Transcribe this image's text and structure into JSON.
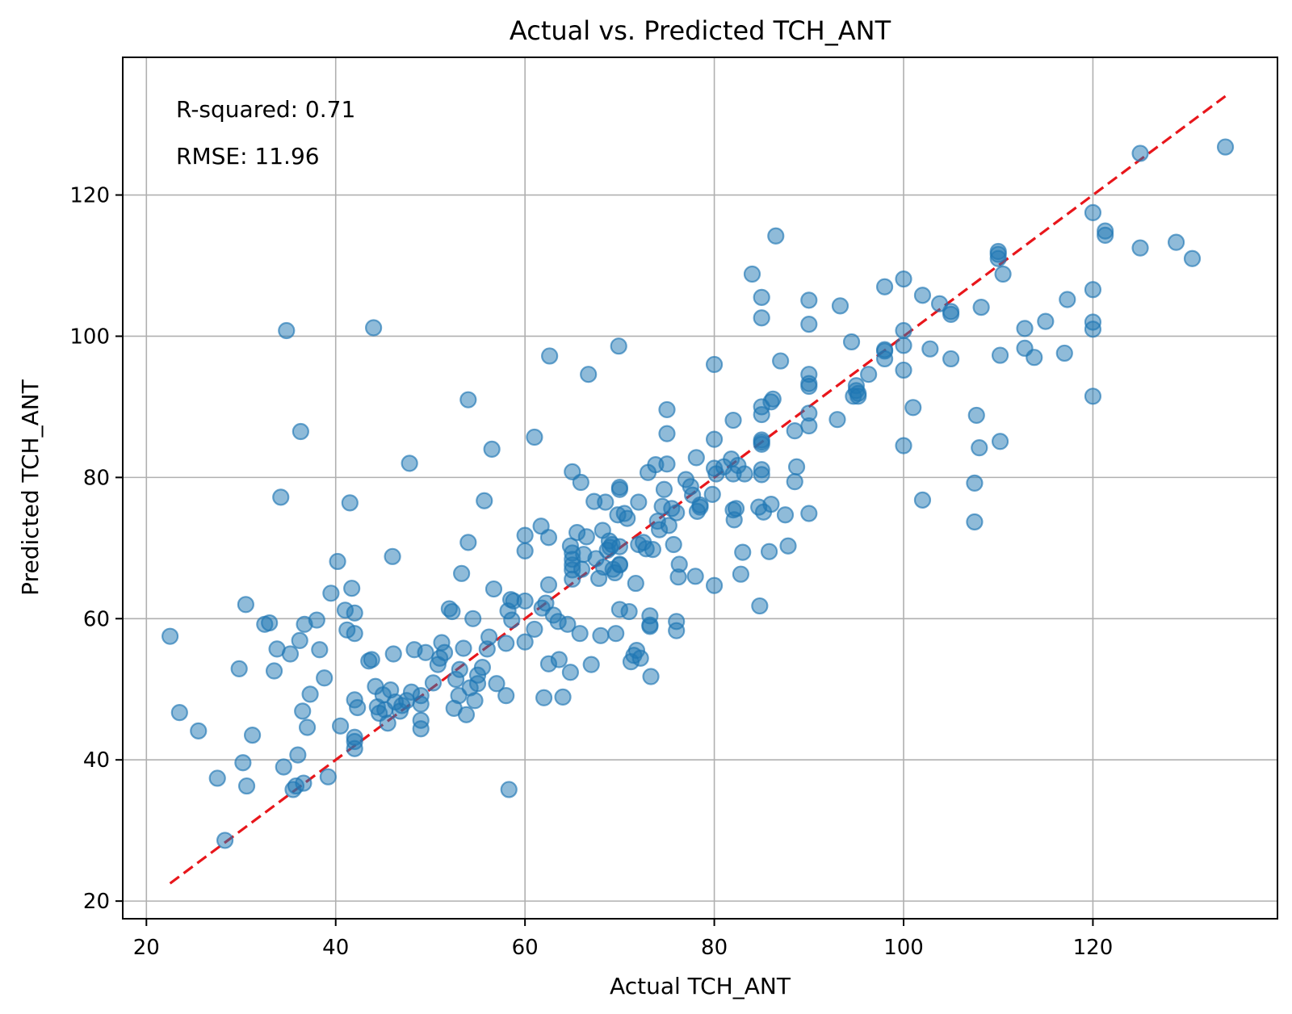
{
  "chart_data": {
    "type": "scatter",
    "title": "Actual vs. Predicted TCH_ANT",
    "xlabel": "Actual TCH_ANT",
    "ylabel": "Predicted TCH_ANT",
    "xlim": [
      17.5,
      139.5
    ],
    "ylim": [
      17.5,
      139.5
    ],
    "xticks": [
      20,
      40,
      60,
      80,
      100,
      120
    ],
    "yticks": [
      20,
      40,
      60,
      80,
      100,
      120
    ],
    "xtick_labels": [
      "20",
      "40",
      "60",
      "80",
      "100",
      "120"
    ],
    "ytick_labels": [
      "20",
      "40",
      "60",
      "80",
      "100",
      "120"
    ],
    "grid": true,
    "annotations": {
      "r_squared": "R-squared: 0.71",
      "rmse": "RMSE: 11.96"
    },
    "reference_line": {
      "x": [
        22.5,
        134
      ],
      "y": [
        22.5,
        134
      ],
      "style": "dashed",
      "color": "#e8161b"
    },
    "marker_color": "#1f77b4",
    "series": [
      {
        "points": [
          [
            22.5,
            57.5
          ],
          [
            23.5,
            46.7
          ],
          [
            25.5,
            44.1
          ],
          [
            27.5,
            37.4
          ],
          [
            28.3,
            28.6
          ],
          [
            29.8,
            52.9
          ],
          [
            30.2,
            39.6
          ],
          [
            30.5,
            62.0
          ],
          [
            30.6,
            36.3
          ],
          [
            31.2,
            43.5
          ],
          [
            32.5,
            59.2
          ],
          [
            33.0,
            59.4
          ],
          [
            33.5,
            52.6
          ],
          [
            33.8,
            55.7
          ],
          [
            34.2,
            77.2
          ],
          [
            34.5,
            39.0
          ],
          [
            34.8,
            100.8
          ],
          [
            35.2,
            55.0
          ],
          [
            35.5,
            35.8
          ],
          [
            35.8,
            36.3
          ],
          [
            36.0,
            40.7
          ],
          [
            36.2,
            56.9
          ],
          [
            36.3,
            86.5
          ],
          [
            36.5,
            46.9
          ],
          [
            36.6,
            36.7
          ],
          [
            36.7,
            59.2
          ],
          [
            37.0,
            44.6
          ],
          [
            37.3,
            49.3
          ],
          [
            38.0,
            59.8
          ],
          [
            38.3,
            55.6
          ],
          [
            38.8,
            51.6
          ],
          [
            39.2,
            37.6
          ],
          [
            39.5,
            63.6
          ],
          [
            40.2,
            68.1
          ],
          [
            40.5,
            44.8
          ],
          [
            41.0,
            61.2
          ],
          [
            41.2,
            58.4
          ],
          [
            41.5,
            76.4
          ],
          [
            41.7,
            64.3
          ],
          [
            42.0,
            57.9
          ],
          [
            42.0,
            60.8
          ],
          [
            42.0,
            42.6
          ],
          [
            42.0,
            41.6
          ],
          [
            42.0,
            43.2
          ],
          [
            42.0,
            48.5
          ],
          [
            42.3,
            47.4
          ],
          [
            43.5,
            54.0
          ],
          [
            43.8,
            54.2
          ],
          [
            44.0,
            101.2
          ],
          [
            44.2,
            50.4
          ],
          [
            44.4,
            47.5
          ],
          [
            44.6,
            46.6
          ],
          [
            45.0,
            49.2
          ],
          [
            45.2,
            47.1
          ],
          [
            45.5,
            45.2
          ],
          [
            45.8,
            49.9
          ],
          [
            46.0,
            68.8
          ],
          [
            46.1,
            55.0
          ],
          [
            46.3,
            48.2
          ],
          [
            46.8,
            46.9
          ],
          [
            47.0,
            47.7
          ],
          [
            47.5,
            48.4
          ],
          [
            47.8,
            82.0
          ],
          [
            48.0,
            49.6
          ],
          [
            48.3,
            55.6
          ],
          [
            49.0,
            47.9
          ],
          [
            49.0,
            45.6
          ],
          [
            49.0,
            44.4
          ],
          [
            49.0,
            49.1
          ],
          [
            49.5,
            55.2
          ],
          [
            50.3,
            50.9
          ],
          [
            50.8,
            53.5
          ],
          [
            51.0,
            54.4
          ],
          [
            51.2,
            56.6
          ],
          [
            51.5,
            55.2
          ],
          [
            52.0,
            61.4
          ],
          [
            52.3,
            61.0
          ],
          [
            52.5,
            47.3
          ],
          [
            52.7,
            51.4
          ],
          [
            53.0,
            49.1
          ],
          [
            53.1,
            52.8
          ],
          [
            53.3,
            66.4
          ],
          [
            53.5,
            55.8
          ],
          [
            53.8,
            46.4
          ],
          [
            54.0,
            70.8
          ],
          [
            54.0,
            91.0
          ],
          [
            54.2,
            50.2
          ],
          [
            54.5,
            60.0
          ],
          [
            54.7,
            48.4
          ],
          [
            55.0,
            50.8
          ],
          [
            55.0,
            52.0
          ],
          [
            55.5,
            53.1
          ],
          [
            55.7,
            76.7
          ],
          [
            56.0,
            55.7
          ],
          [
            56.2,
            57.4
          ],
          [
            56.5,
            84.0
          ],
          [
            56.7,
            64.2
          ],
          [
            57.0,
            50.8
          ],
          [
            58.0,
            49.1
          ],
          [
            58.0,
            56.5
          ],
          [
            58.2,
            61.1
          ],
          [
            58.3,
            35.8
          ],
          [
            58.5,
            62.7
          ],
          [
            58.6,
            59.8
          ],
          [
            58.8,
            62.5
          ],
          [
            60.0,
            71.8
          ],
          [
            60.0,
            69.6
          ],
          [
            60.0,
            62.5
          ],
          [
            60.0,
            56.7
          ],
          [
            61.0,
            85.7
          ],
          [
            61.0,
            58.5
          ],
          [
            61.7,
            73.1
          ],
          [
            61.8,
            61.5
          ],
          [
            62.0,
            48.8
          ],
          [
            62.2,
            62.2
          ],
          [
            62.5,
            53.6
          ],
          [
            62.5,
            64.8
          ],
          [
            62.5,
            71.5
          ],
          [
            62.6,
            97.2
          ],
          [
            63.0,
            60.5
          ],
          [
            63.5,
            59.6
          ],
          [
            63.6,
            54.2
          ],
          [
            64.0,
            48.9
          ],
          [
            64.5,
            59.2
          ],
          [
            64.8,
            70.3
          ],
          [
            64.8,
            52.4
          ],
          [
            65.0,
            68.4
          ],
          [
            65.0,
            67.6
          ],
          [
            65.0,
            80.8
          ],
          [
            65.0,
            66.9
          ],
          [
            65.0,
            65.6
          ],
          [
            65.0,
            69.3
          ],
          [
            65.5,
            72.2
          ],
          [
            65.8,
            57.9
          ],
          [
            65.9,
            79.3
          ],
          [
            66.0,
            67.0
          ],
          [
            66.2,
            69.1
          ],
          [
            66.5,
            71.6
          ],
          [
            66.7,
            94.6
          ],
          [
            67.0,
            53.5
          ],
          [
            67.3,
            76.6
          ],
          [
            67.5,
            68.5
          ],
          [
            67.8,
            65.7
          ],
          [
            68.0,
            57.6
          ],
          [
            68.2,
            72.5
          ],
          [
            68.3,
            67.3
          ],
          [
            68.5,
            76.5
          ],
          [
            68.7,
            69.7
          ],
          [
            68.9,
            71.0
          ],
          [
            69.0,
            70.1
          ],
          [
            69.2,
            70.5
          ],
          [
            69.3,
            67.0
          ],
          [
            69.5,
            66.5
          ],
          [
            69.6,
            57.9
          ],
          [
            69.8,
            74.7
          ],
          [
            69.9,
            98.6
          ],
          [
            70.0,
            78.3
          ],
          [
            70.0,
            67.7
          ],
          [
            70.0,
            61.3
          ],
          [
            70.0,
            70.2
          ],
          [
            70.0,
            67.6
          ],
          [
            70.0,
            78.6
          ],
          [
            70.5,
            74.9
          ],
          [
            70.8,
            74.2
          ],
          [
            71.0,
            61.0
          ],
          [
            71.2,
            53.9
          ],
          [
            71.5,
            54.8
          ],
          [
            71.7,
            65.0
          ],
          [
            71.8,
            55.5
          ],
          [
            72.0,
            70.5
          ],
          [
            72.0,
            76.5
          ],
          [
            72.2,
            54.4
          ],
          [
            72.5,
            70.8
          ],
          [
            72.8,
            69.9
          ],
          [
            73.0,
            80.7
          ],
          [
            73.2,
            59.1
          ],
          [
            73.2,
            58.9
          ],
          [
            73.2,
            60.4
          ],
          [
            73.3,
            51.8
          ],
          [
            73.5,
            69.8
          ],
          [
            73.8,
            81.8
          ],
          [
            74.0,
            73.8
          ],
          [
            74.2,
            72.6
          ],
          [
            74.5,
            75.9
          ],
          [
            74.7,
            78.3
          ],
          [
            75.0,
            81.9
          ],
          [
            75.0,
            86.2
          ],
          [
            75.0,
            89.6
          ],
          [
            75.2,
            73.2
          ],
          [
            75.5,
            75.6
          ],
          [
            75.7,
            70.5
          ],
          [
            76.0,
            75.0
          ],
          [
            76.0,
            59.6
          ],
          [
            76.0,
            58.3
          ],
          [
            76.2,
            65.9
          ],
          [
            76.3,
            67.7
          ],
          [
            77.0,
            79.7
          ],
          [
            77.5,
            78.7
          ],
          [
            77.7,
            77.5
          ],
          [
            78.0,
            66.0
          ],
          [
            78.1,
            82.8
          ],
          [
            78.2,
            75.2
          ],
          [
            78.5,
            75.8
          ],
          [
            78.5,
            76.1
          ],
          [
            79.8,
            77.6
          ],
          [
            80.0,
            85.4
          ],
          [
            80.0,
            81.3
          ],
          [
            80.0,
            64.7
          ],
          [
            80.0,
            96.0
          ],
          [
            80.2,
            80.5
          ],
          [
            81.0,
            81.5
          ],
          [
            81.8,
            82.6
          ],
          [
            82.0,
            88.1
          ],
          [
            82.0,
            75.4
          ],
          [
            82.0,
            80.5
          ],
          [
            82.1,
            74.0
          ],
          [
            82.3,
            75.6
          ],
          [
            82.5,
            81.7
          ],
          [
            82.8,
            66.3
          ],
          [
            83.0,
            69.4
          ],
          [
            83.2,
            80.5
          ],
          [
            84.0,
            108.8
          ],
          [
            84.7,
            75.8
          ],
          [
            84.8,
            61.8
          ],
          [
            85.0,
            102.6
          ],
          [
            85.0,
            105.5
          ],
          [
            85.0,
            85.0
          ],
          [
            85.0,
            85.3
          ],
          [
            85.0,
            84.7
          ],
          [
            85.0,
            81.1
          ],
          [
            85.0,
            80.4
          ],
          [
            85.2,
            75.1
          ],
          [
            85.0,
            88.9
          ],
          [
            85.0,
            90.0
          ],
          [
            85.8,
            69.5
          ],
          [
            86.0,
            76.2
          ],
          [
            86.0,
            90.7
          ],
          [
            86.2,
            91.1
          ],
          [
            86.5,
            114.2
          ],
          [
            87.0,
            96.5
          ],
          [
            87.5,
            74.7
          ],
          [
            87.8,
            70.3
          ],
          [
            88.5,
            79.4
          ],
          [
            88.5,
            86.6
          ],
          [
            88.7,
            81.5
          ],
          [
            90.0,
            101.7
          ],
          [
            90.0,
            105.1
          ],
          [
            90.0,
            94.6
          ],
          [
            90.0,
            93.3
          ],
          [
            90.0,
            92.9
          ],
          [
            90.0,
            74.9
          ],
          [
            90.0,
            87.3
          ],
          [
            90.0,
            89.1
          ],
          [
            93.0,
            88.2
          ],
          [
            93.3,
            104.3
          ],
          [
            94.5,
            99.2
          ],
          [
            94.7,
            91.5
          ],
          [
            95.0,
            92.3
          ],
          [
            95.2,
            91.9
          ],
          [
            95.0,
            93.0
          ],
          [
            95.2,
            91.5
          ],
          [
            96.3,
            94.6
          ],
          [
            98.0,
            107.0
          ],
          [
            98.0,
            97.9
          ],
          [
            98.0,
            98.1
          ],
          [
            98.0,
            96.8
          ],
          [
            100.0,
            108.1
          ],
          [
            100.0,
            84.5
          ],
          [
            100.0,
            95.2
          ],
          [
            100.0,
            98.7
          ],
          [
            100.0,
            100.8
          ],
          [
            101.0,
            89.9
          ],
          [
            102.0,
            76.8
          ],
          [
            102.0,
            105.8
          ],
          [
            102.8,
            98.2
          ],
          [
            103.8,
            104.6
          ],
          [
            105.0,
            103.1
          ],
          [
            105.0,
            103.5
          ],
          [
            105.0,
            96.8
          ],
          [
            107.5,
            79.2
          ],
          [
            107.5,
            73.7
          ],
          [
            107.7,
            88.8
          ],
          [
            108.0,
            84.2
          ],
          [
            108.2,
            104.1
          ],
          [
            110.0,
            111.0
          ],
          [
            110.0,
            111.6
          ],
          [
            110.0,
            112.0
          ],
          [
            110.2,
            97.3
          ],
          [
            110.2,
            85.1
          ],
          [
            110.5,
            108.8
          ],
          [
            112.8,
            101.1
          ],
          [
            112.8,
            98.3
          ],
          [
            113.8,
            97.0
          ],
          [
            115.0,
            102.1
          ],
          [
            117.0,
            97.6
          ],
          [
            117.3,
            105.2
          ],
          [
            120.0,
            117.5
          ],
          [
            120.0,
            106.6
          ],
          [
            120.0,
            102.0
          ],
          [
            120.0,
            101.0
          ],
          [
            120.0,
            91.5
          ],
          [
            121.3,
            114.9
          ],
          [
            121.3,
            114.3
          ],
          [
            125.0,
            125.9
          ],
          [
            125.0,
            112.5
          ],
          [
            128.8,
            113.3
          ],
          [
            130.5,
            111.0
          ],
          [
            134.0,
            126.8
          ]
        ]
      }
    ]
  }
}
